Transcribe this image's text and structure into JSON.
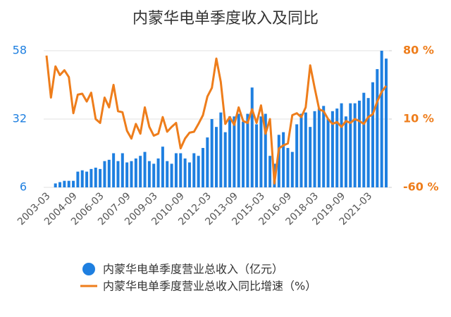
{
  "chart_data": {
    "type": "bar_line",
    "title": "内蒙华电单季度收入及同比",
    "categories": [
      "2003-03",
      null,
      null,
      null,
      null,
      null,
      "2004-09",
      null,
      null,
      null,
      null,
      null,
      "2006-03",
      null,
      null,
      null,
      null,
      null,
      "2007-09",
      null,
      null,
      null,
      null,
      null,
      "2009-03",
      null,
      null,
      null,
      null,
      null,
      "2010-09",
      null,
      null,
      null,
      null,
      null,
      "2012-03",
      null,
      null,
      null,
      null,
      null,
      "2013-09",
      null,
      null,
      null,
      null,
      null,
      "2015-03",
      null,
      null,
      null,
      null,
      null,
      "2016-09",
      null,
      null,
      null,
      null,
      null,
      "2018-03",
      null,
      null,
      null,
      null,
      null,
      "2019-09",
      null,
      null,
      null,
      null,
      null,
      "2021-03",
      null,
      null,
      null,
      null
    ],
    "series": [
      {
        "name": "内蒙华电单季度营业总收入（亿元）",
        "type": "bar",
        "axis": "y",
        "color": "#1e7fe0",
        "values": [
          null,
          null,
          7.5,
          8,
          8.5,
          8.5,
          8.5,
          12,
          12.5,
          12,
          13,
          13.5,
          13,
          16,
          16.5,
          19,
          16,
          19,
          15.5,
          16,
          17,
          18,
          19.5,
          16,
          15,
          17,
          21.5,
          16,
          15,
          19,
          19,
          17,
          15.5,
          19,
          18,
          21,
          25,
          32,
          29,
          34.5,
          27,
          33,
          33,
          34,
          31,
          34,
          44,
          30,
          33,
          34,
          18,
          15,
          26,
          27,
          21,
          19.5,
          30,
          34,
          34.5,
          29,
          35,
          36,
          37,
          32,
          35,
          36,
          38,
          33,
          38,
          38,
          39,
          42,
          40,
          46,
          51,
          58,
          55
        ]
      },
      {
        "name": "内蒙华电单季度营业总收入同比增速（%）",
        "type": "line",
        "axis": "y2",
        "color": "#ee7d1b",
        "values": [
          75,
          32,
          64,
          55,
          60,
          53,
          16,
          35,
          36,
          28,
          37,
          10,
          6,
          32,
          22,
          45,
          18,
          17,
          -2,
          -10,
          5,
          -5,
          22,
          2,
          -7,
          -5,
          12,
          -3,
          2,
          6,
          -20,
          -10,
          -4,
          -3,
          5,
          14,
          33,
          42,
          72,
          48,
          5,
          12,
          4,
          22,
          8,
          6,
          20,
          6,
          24,
          -5,
          10,
          -56,
          -20,
          -17,
          -15,
          14,
          16,
          12,
          22,
          65,
          42,
          20,
          18,
          10,
          5,
          7,
          2,
          8,
          6,
          10,
          8,
          5,
          12,
          15,
          28,
          38,
          44
        ]
      }
    ],
    "ylim": [
      6,
      58
    ],
    "yticks": [
      6,
      32,
      58
    ],
    "y2lim": [
      -60,
      80
    ],
    "y2ticks": [
      {
        "value": -60,
        "label": "-60 %"
      },
      {
        "value": 10,
        "label": "10 %"
      },
      {
        "value": 80,
        "label": "80 %"
      }
    ],
    "grid": true,
    "legend": "bottom"
  }
}
